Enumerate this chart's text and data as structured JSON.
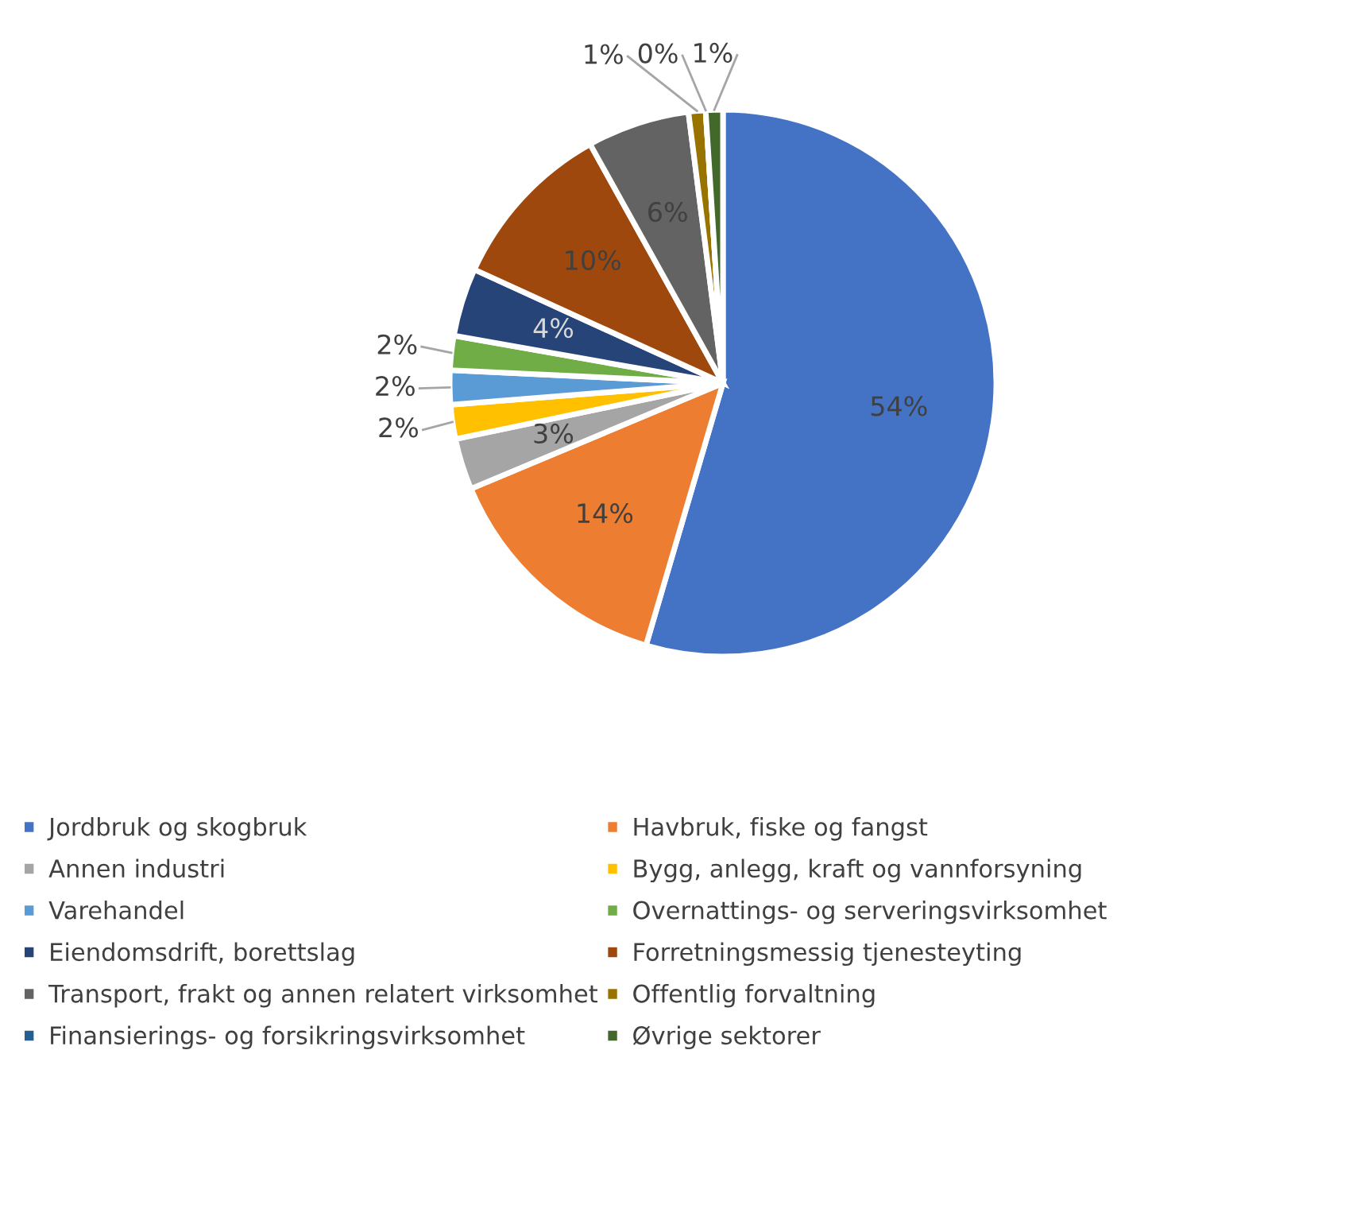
{
  "chart_data": {
    "type": "pie",
    "categories": [
      "Jordbruk og skogbruk",
      "Havbruk, fiske og fangst",
      "Annen industri",
      "Bygg, anlegg, kraft og vannforsyning",
      "Varehandel",
      "Overnattings- og serveringsvirksomhet",
      "Eiendomsdrift, borettslag",
      "Forretningsmessig tjenesteyting",
      "Transport, frakt og annen relatert virksomhet",
      "Offentlig forvaltning",
      "Finansierings- og forsikringsvirksomhet",
      "Øvrige sektorer"
    ],
    "values": [
      54,
      14,
      3,
      2,
      2,
      2,
      4,
      10,
      6,
      1,
      0,
      1
    ],
    "colors": [
      "#4472c4",
      "#ed7d31",
      "#a5a5a5",
      "#ffc000",
      "#5b9bd5",
      "#70ad47",
      "#264478",
      "#9e480e",
      "#636363",
      "#997300",
      "#255e91",
      "#43682b"
    ],
    "value_labels": [
      "54%",
      "14%",
      "3%",
      "2%",
      "2%",
      "2%",
      "4%",
      "10%",
      "6%",
      "1%",
      "0%",
      "1%"
    ],
    "legend": "bottom"
  }
}
